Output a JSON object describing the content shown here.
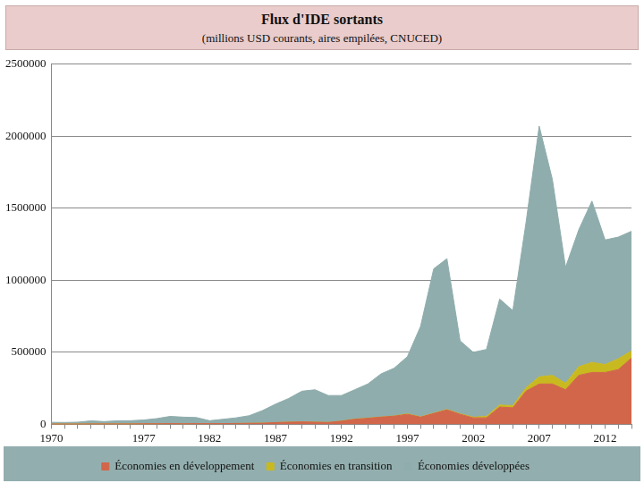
{
  "chart_data": {
    "type": "area",
    "title": "Flux d'IDE sortants",
    "subtitle": "(millions USD courants, aires empilées, CNUCED)",
    "categories": [
      "1970",
      null,
      null,
      null,
      null,
      null,
      null,
      "1977",
      null,
      null,
      null,
      null,
      "1982",
      null,
      null,
      null,
      null,
      "1987",
      null,
      null,
      null,
      null,
      "1992",
      null,
      null,
      null,
      null,
      "1997",
      null,
      null,
      null,
      null,
      "2002",
      null,
      null,
      null,
      null,
      "2007",
      null,
      null,
      null,
      null,
      "2012",
      null,
      null
    ],
    "series": [
      {
        "name": "Économies en développement",
        "color": "#d1664a",
        "values": [
          2000,
          2000,
          2000,
          3000,
          3000,
          3000,
          3000,
          4000,
          4000,
          5000,
          4000,
          5000,
          5000,
          5000,
          6000,
          7000,
          8000,
          12000,
          15000,
          17000,
          15000,
          13000,
          22000,
          35000,
          42000,
          50000,
          57000,
          70000,
          50000,
          75000,
          100000,
          70000,
          45000,
          45000,
          120000,
          115000,
          230000,
          280000,
          280000,
          240000,
          340000,
          360000,
          360000,
          380000,
          460000
        ]
      },
      {
        "name": "Économies en transition",
        "color": "#c9b920",
        "values": [
          0,
          0,
          0,
          0,
          0,
          0,
          0,
          0,
          0,
          0,
          0,
          0,
          0,
          0,
          0,
          0,
          0,
          0,
          0,
          0,
          0,
          0,
          1000,
          1000,
          1000,
          1000,
          1000,
          3000,
          2000,
          2000,
          3000,
          3000,
          5000,
          10000,
          14000,
          15000,
          24000,
          50000,
          60000,
          45000,
          60000,
          70000,
          55000,
          75000,
          50000
        ]
      },
      {
        "name": "Économies développées",
        "color": "#8fadac",
        "values": [
          12000,
          11000,
          13000,
          21000,
          16000,
          21000,
          22000,
          26000,
          36000,
          50000,
          46000,
          42000,
          20000,
          30000,
          39000,
          53000,
          87000,
          128000,
          165000,
          213000,
          225000,
          187000,
          177000,
          204000,
          237000,
          299000,
          332000,
          397000,
          628000,
          1003000,
          1047000,
          507000,
          450000,
          465000,
          736000,
          660000,
          1146000,
          1740000,
          1360000,
          805000,
          950000,
          1120000,
          865000,
          845000,
          830000
        ]
      }
    ],
    "ylim": [
      0,
      2500000
    ],
    "yticks": [
      0,
      500000,
      1000000,
      1500000,
      2000000,
      2500000
    ],
    "stacked": true,
    "grid": true,
    "legend": "bottom"
  }
}
